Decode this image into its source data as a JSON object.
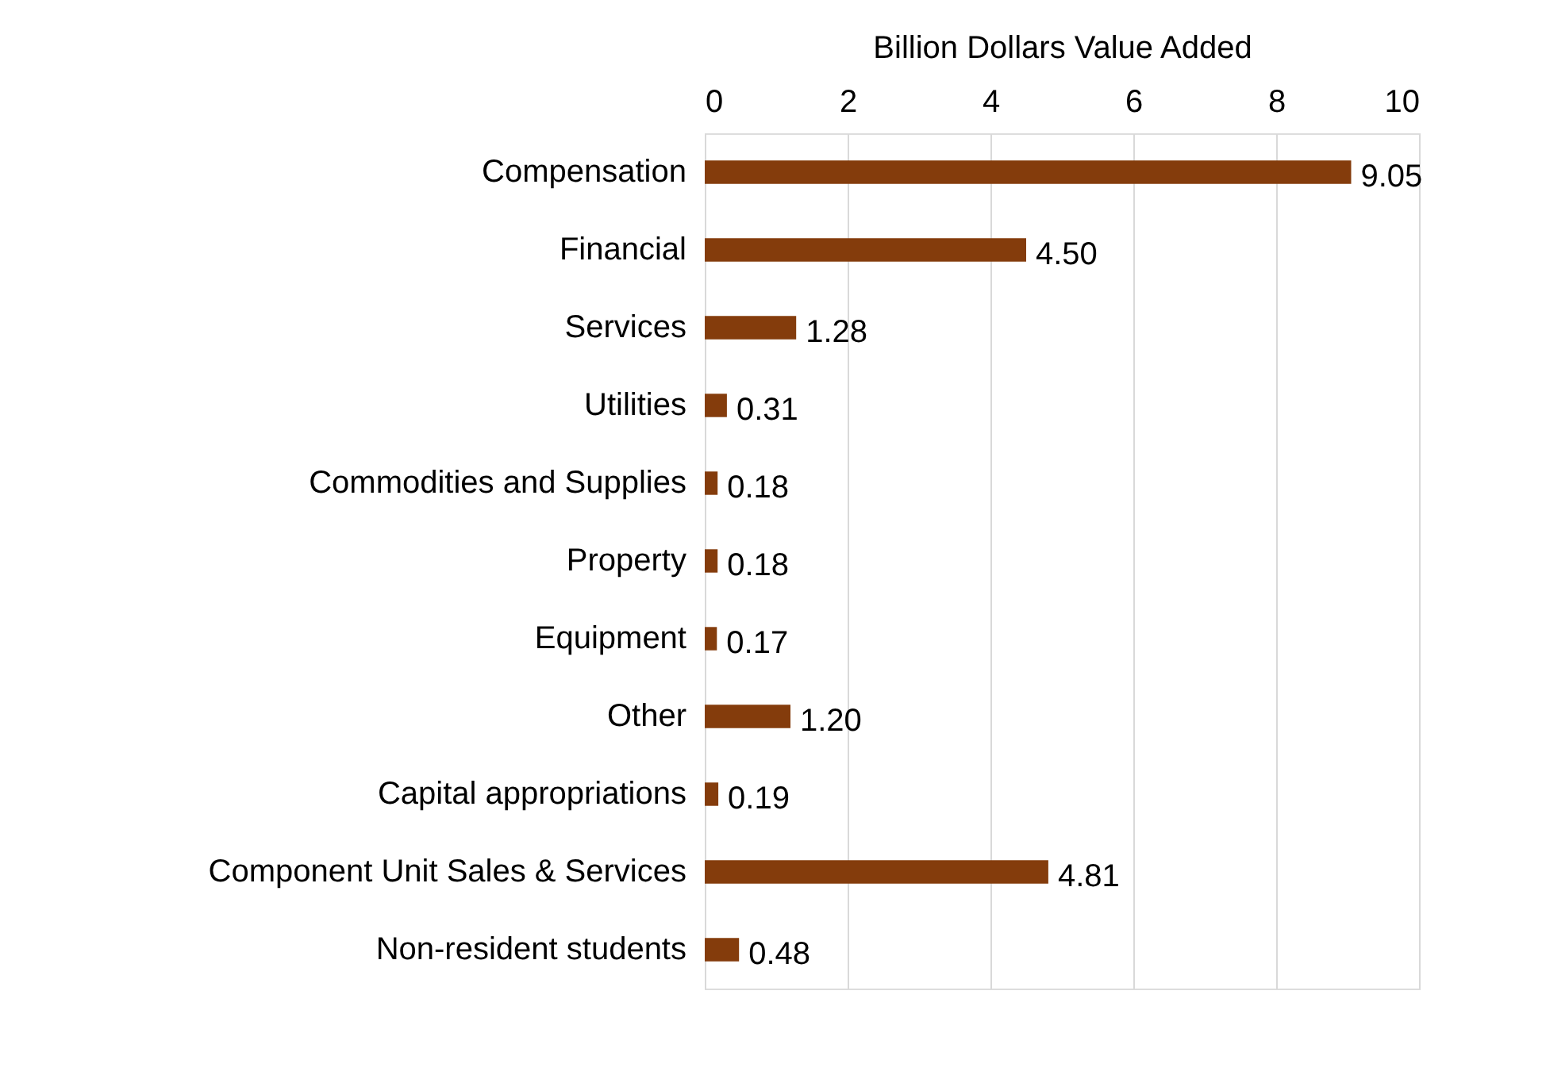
{
  "chart_data": {
    "type": "bar",
    "orientation": "horizontal",
    "xlabel": "Billion Dollars Value Added",
    "categories": [
      "Compensation",
      "Financial",
      "Services",
      "Utilities",
      "Commodities and Supplies",
      "Property",
      "Equipment",
      "Other",
      "Capital appropriations",
      "Component Unit Sales & Services",
      "Non-resident students"
    ],
    "values": [
      9.05,
      4.5,
      1.28,
      0.31,
      0.18,
      0.18,
      0.17,
      1.2,
      0.19,
      4.81,
      0.48
    ],
    "value_labels": [
      "9.05",
      "4.50",
      "1.28",
      "0.31",
      "0.18",
      "0.18",
      "0.17",
      "1.20",
      "0.19",
      "4.81",
      "0.48"
    ],
    "color": "#843c0c",
    "xlim": [
      0,
      10
    ],
    "xticks": [
      0,
      2,
      4,
      6,
      8,
      10
    ],
    "grid": "x"
  }
}
